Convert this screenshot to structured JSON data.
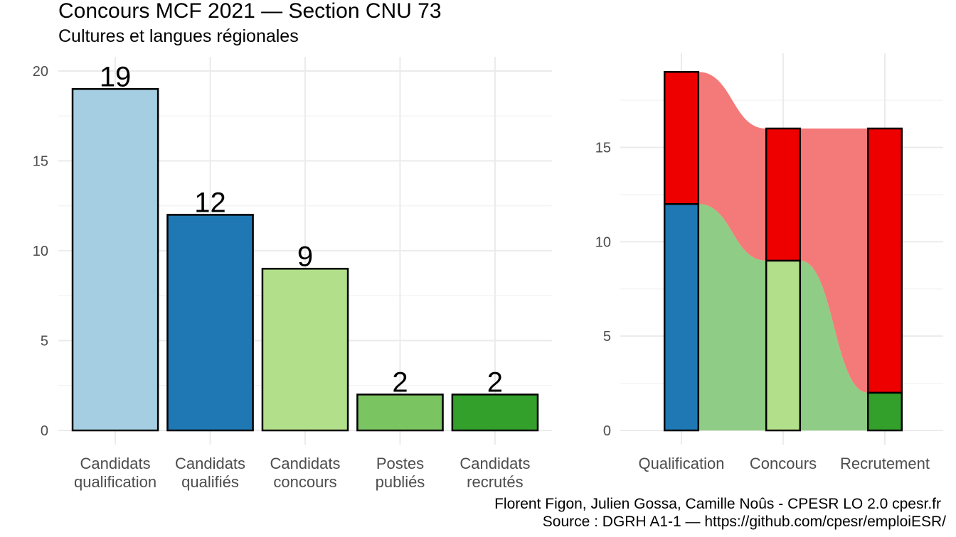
{
  "title": "Concours MCF  2021  —  Section CNU 73",
  "subtitle": "Cultures et langues régionales",
  "caption": {
    "line1": "Florent Figon, Julien Gossa, Camille Noûs - CPESR LO 2.0 cpesr.fr",
    "line2": "Source : DGRH A1-1 — https://github.com/cpesr/emploiESR/"
  },
  "chart_data": [
    {
      "type": "bar",
      "categories": [
        [
          "Candidats",
          "qualification"
        ],
        [
          "Candidats",
          "qualifiés"
        ],
        [
          "Candidats",
          "concours"
        ],
        [
          "Postes",
          "publiés"
        ],
        [
          "Candidats",
          "recrutés"
        ]
      ],
      "values": [
        19,
        12,
        9,
        2,
        2
      ],
      "colors": [
        "#a6cee3",
        "#1f78b4",
        "#b2df8a",
        "#7bc462",
        "#33a02c"
      ],
      "ylim": [
        0,
        20
      ],
      "yticks": [
        0,
        5,
        10,
        15,
        20
      ],
      "grid": true
    },
    {
      "type": "bar",
      "subtype": "stacked-alluvial",
      "categories": [
        "Qualification",
        "Concours",
        "Recrutement"
      ],
      "series": [
        {
          "values": [
            12,
            9,
            2
          ],
          "colors": [
            "#1f78b4",
            "#b2df8a",
            "#33a02c"
          ],
          "flow_color": "#8fcc85"
        },
        {
          "values": [
            7,
            7,
            14
          ],
          "color": "#ee0000",
          "flow_color": "#f47a7a"
        }
      ],
      "ylim": [
        0,
        19
      ],
      "yticks": [
        0,
        5,
        10,
        15
      ],
      "grid": true
    }
  ]
}
